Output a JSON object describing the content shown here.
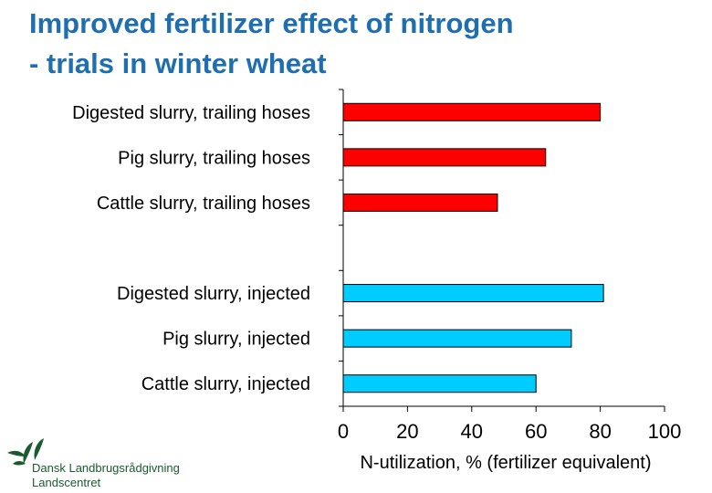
{
  "title_lines": [
    "Improved fertilizer effect of nitrogen",
    "- trials in winter wheat"
  ],
  "logo": {
    "line1": "Dansk Landbrugsrådgivning",
    "line2": "Landscentret"
  },
  "chart_data": {
    "type": "bar",
    "orientation": "horizontal",
    "categories": [
      "Digested slurry, trailing hoses",
      "Pig slurry, trailing hoses",
      "Cattle slurry, trailing hoses",
      "",
      "Digested slurry, injected",
      "Pig slurry, injected",
      "Cattle slurry, injected"
    ],
    "values": [
      80,
      63,
      48,
      null,
      81,
      71,
      60
    ],
    "bar_colors": [
      "#ff0000",
      "#ff0000",
      "#ff0000",
      null,
      "#00ccff",
      "#00ccff",
      "#00ccff"
    ],
    "xlabel": "N-utilization, % (fertilizer equivalent)",
    "xlim": [
      0,
      100
    ],
    "xticks": [
      0,
      20,
      40,
      60,
      80,
      100
    ],
    "grid": false
  }
}
